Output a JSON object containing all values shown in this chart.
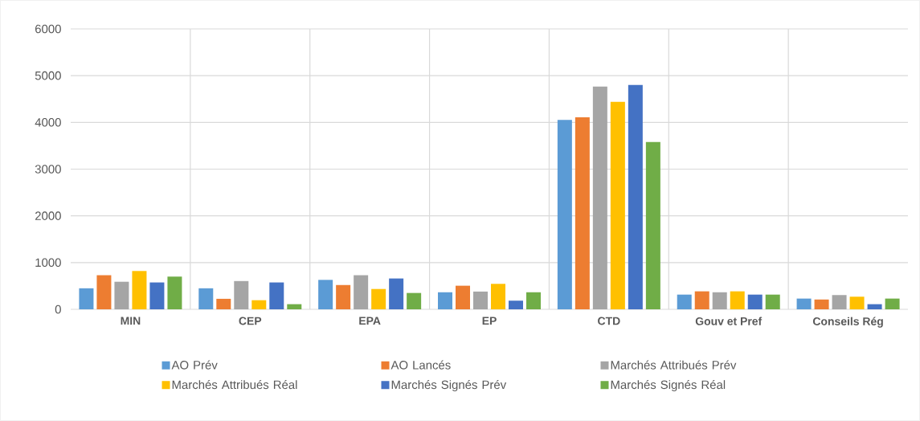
{
  "chart_data": {
    "type": "bar",
    "categories": [
      "MIN",
      "CEP",
      "EPA",
      "EP",
      "CTD",
      "Gouv et Pref",
      "Conseils Rég"
    ],
    "series": [
      {
        "name": "AO Prév",
        "color": "#5b9bd5",
        "values": [
          450,
          450,
          630,
          365,
          4055,
          315,
          230
        ]
      },
      {
        "name": "AO Lancés",
        "color": "#ed7d31",
        "values": [
          730,
          225,
          520,
          505,
          4110,
          385,
          210
        ]
      },
      {
        "name": "Marchés Attribués Prév",
        "color": "#a5a5a5",
        "values": [
          590,
          605,
          730,
          380,
          4765,
          365,
          305
        ]
      },
      {
        "name": "Marchés Attribués Réal",
        "color": "#ffc000",
        "values": [
          820,
          195,
          435,
          545,
          4440,
          385,
          270
        ]
      },
      {
        "name": "Marchés Signés Prév",
        "color": "#4472c4",
        "values": [
          575,
          575,
          660,
          185,
          4800,
          315,
          110
        ]
      },
      {
        "name": "Marchés Signés Réal",
        "color": "#70ad47",
        "values": [
          700,
          110,
          350,
          365,
          3580,
          315,
          230
        ]
      }
    ],
    "ylim": [
      0,
      6000
    ],
    "yticks": [
      0,
      1000,
      2000,
      3000,
      4000,
      5000,
      6000
    ],
    "grid": true,
    "legend": "bottom"
  }
}
